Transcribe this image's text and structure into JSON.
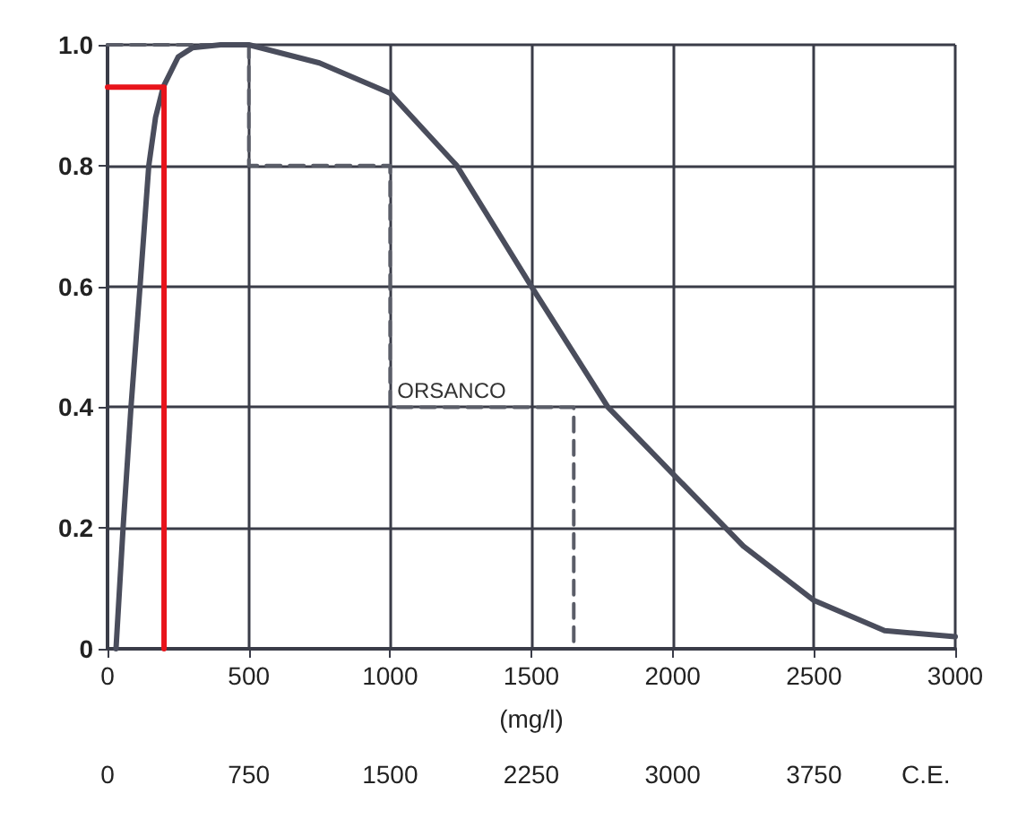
{
  "chart_data": {
    "type": "line",
    "xlabel": "(mg/l)",
    "x2label": "C.E.",
    "xlim": [
      0,
      3000
    ],
    "xticks": [
      0,
      500,
      1000,
      1500,
      2000,
      2500,
      3000
    ],
    "x2lim": [
      0,
      4500
    ],
    "x2ticks": [
      0,
      750,
      1500,
      2250,
      3000,
      3750
    ],
    "ylim": [
      0,
      1
    ],
    "yticks": [
      0,
      0.2,
      0.4,
      0.6,
      0.8,
      {
        "value": 1,
        "label": "1.0"
      }
    ],
    "grid": true,
    "marker": "none",
    "annotations": [
      {
        "text": "ORSANCO",
        "x": 1000,
        "y": 0.4
      }
    ],
    "series": [
      {
        "color": "#4a4d5c",
        "line_style": "solid",
        "x": [
          30,
          55,
          83,
          115,
          146,
          170,
          197,
          250,
          300,
          400,
          500,
          750,
          1000,
          1236,
          1500,
          1771,
          2000,
          2250,
          2500,
          2750,
          3000
        ],
        "values": [
          0,
          0.2,
          0.4,
          0.6,
          0.8,
          0.88,
          0.93,
          0.98,
          0.995,
          1,
          1,
          0.97,
          0.92,
          0.8,
          0.6,
          0.4,
          0.29,
          0.17,
          0.08,
          0.03,
          0.02
        ]
      },
      {
        "color": "#5a5d68",
        "line_style": "dashed",
        "x": [
          0,
          500,
          500,
          1000,
          1000,
          1650,
          1650
        ],
        "values": [
          1,
          1,
          0.8,
          0.8,
          0.4,
          0.4,
          0
        ]
      },
      {
        "color": "#e8141b",
        "line_style": "solid",
        "x": [
          0,
          200,
          200
        ],
        "values": [
          0.93,
          0.93,
          0
        ]
      }
    ]
  }
}
